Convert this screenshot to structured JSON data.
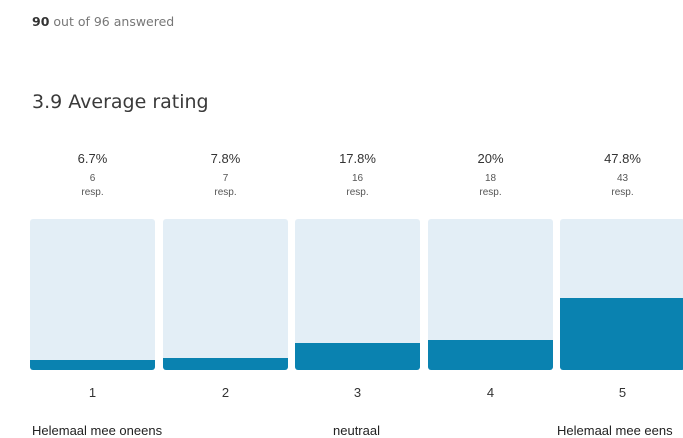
{
  "summary": {
    "answered_count": "90",
    "answered_text": "out of 96 answered",
    "average_label": "3.9 Average rating"
  },
  "chart_data": {
    "type": "bar",
    "categories": [
      "1",
      "2",
      "3",
      "4",
      "5"
    ],
    "series": [
      {
        "values": [
          6.7,
          7.8,
          17.8,
          20,
          47.8
        ],
        "labels": [
          "6.7%",
          "7.8%",
          "17.8%",
          "20%",
          "47.8%"
        ],
        "counts": [
          "6",
          "7",
          "16",
          "18",
          "43"
        ]
      }
    ],
    "count_unit": "resp.",
    "anchors": {
      "low": "Helemaal mee oneens",
      "mid": "neutraal",
      "high": "Helemaal mee eens"
    },
    "bar_color": "#0a82b0",
    "track_color": "#e3eef6"
  }
}
